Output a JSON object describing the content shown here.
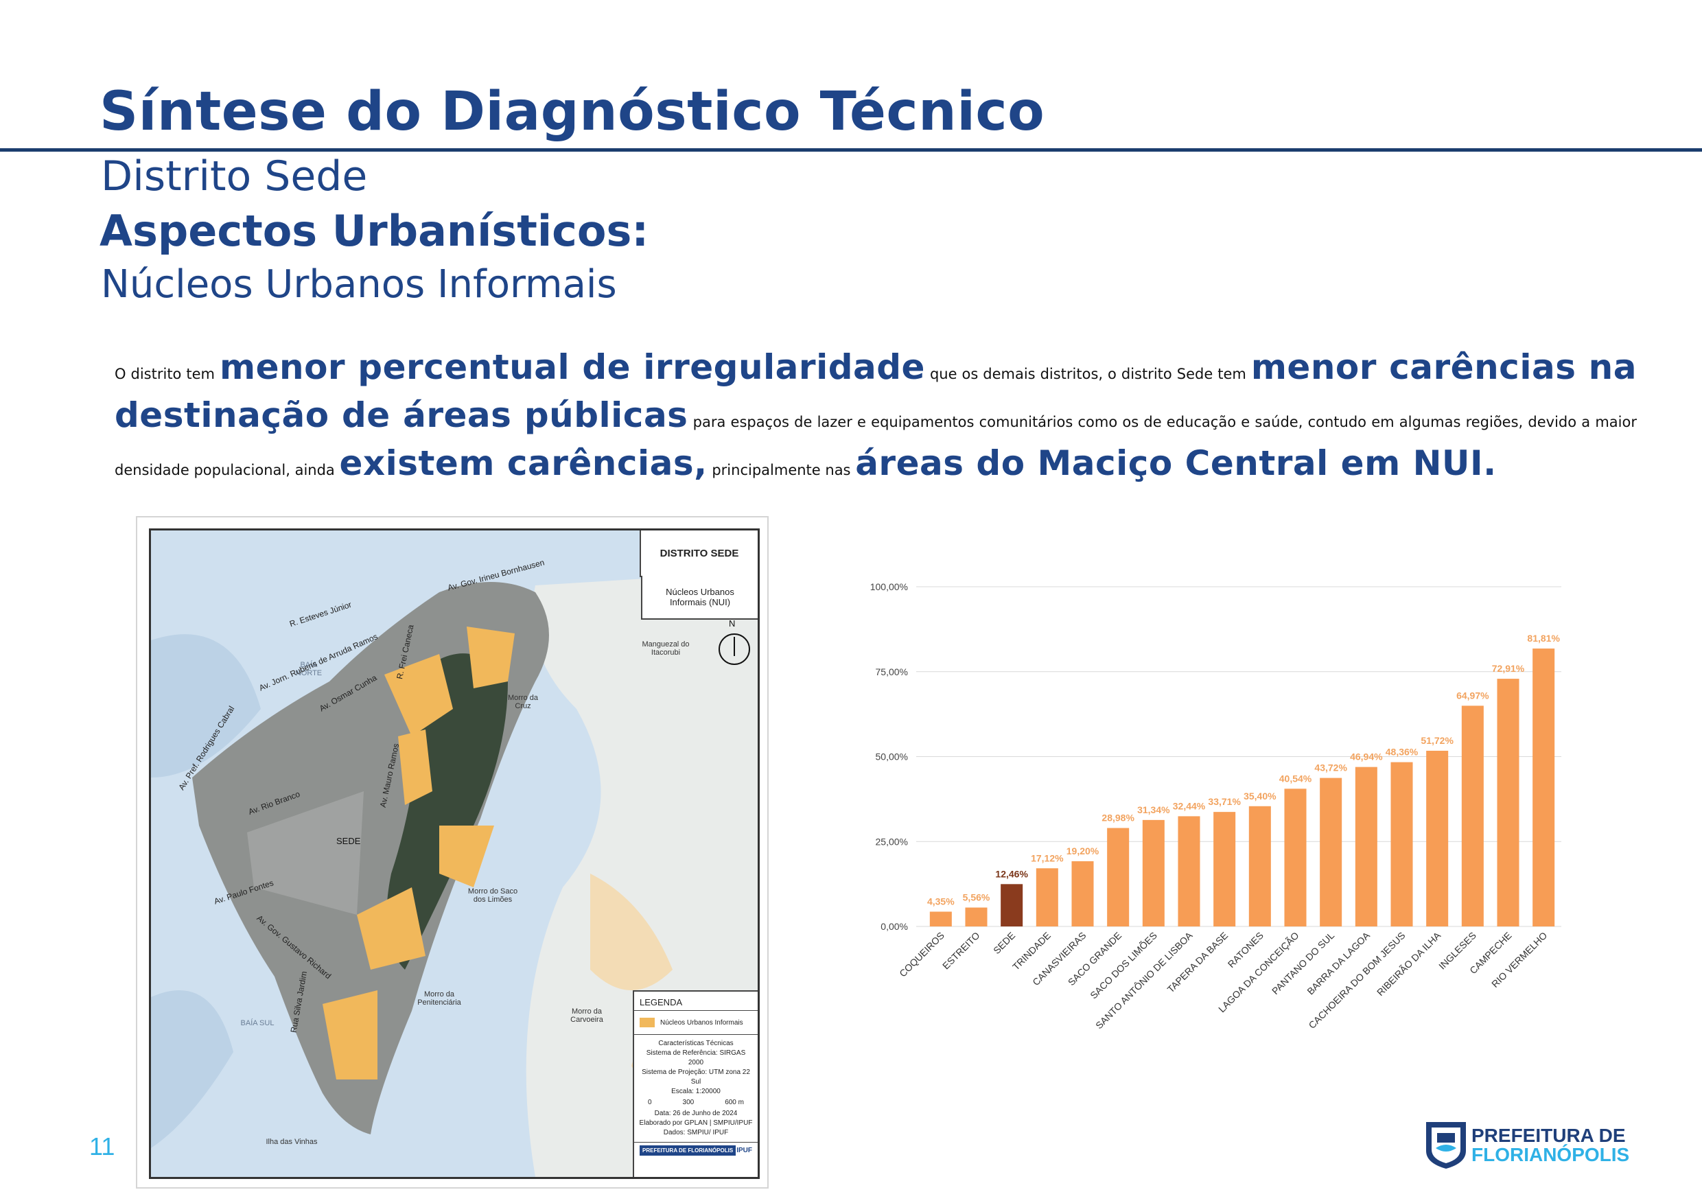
{
  "header": {
    "title": "Síntese do Diagnóstico Técnico",
    "district": "Distrito Sede",
    "section": "Aspectos Urbanísticos:",
    "subsection": "Núcleos Urbanos Informais"
  },
  "paragraph": {
    "p1": "O distrito tem ",
    "b1": "menor percentual de irregularidade",
    "p2": " que os demais distritos, o distrito Sede tem ",
    "b2": "menor carências na destinação de áreas públicas",
    "p3": " para espaços de lazer e equipamentos comunitários como os de educação e saúde, contudo em algumas regiões, devido a maior densidade populacional, ainda ",
    "b3": "existem carências,",
    "p4": " principalmente nas ",
    "b4": "áreas do Maciço Central em NUI."
  },
  "map": {
    "title": "DISTRITO SEDE",
    "subtitle": "Núcleos Urbanos Informais (NUI)",
    "north": "N",
    "labels": {
      "baia_norte": "BAÍA NORTE",
      "baia_sul": "BAÍA SUL",
      "sede": "SEDE",
      "manguezal": "Manguezal do Itacorubi",
      "ilha_vinhas": "Ilha das Vinhas",
      "morro_carvoeira": "Morro da Carvoeira",
      "morro_cruz": "Morro da Cruz",
      "morro_limoes": "Morro do Saco dos Limões",
      "morro_caixa": "Morro da Penitenciária"
    },
    "streets": {
      "beira_mar": "Av. Gov. Irineu Bornhausen",
      "rubens": "Av. Jorn. Rubens de Arruda Ramos",
      "rio_branco": "Av. Rio Branco",
      "paulo_fontes": "Av. Paulo Fontes",
      "gustavo": "Av. Gov. Gustavo Richard",
      "osmar": "Av. Osmar Cunha",
      "mauro": "Av. Mauro Ramos",
      "prof_othon": "R. Frei Caneca",
      "rodrigues": "Av. Pref. Rodrigues Cabral",
      "ruaesteves": "R. Esteves Júnior",
      "ruasilva": "Rua Silva Jardim"
    },
    "legend": {
      "heading": "LEGENDA",
      "item": "Núcleos Urbanos Informais",
      "tech_title": "Características Técnicas",
      "ref": "Sistema de Referência: SIRGAS 2000",
      "proj": "Sistema de Projeção: UTM zona 22 Sul",
      "scale": "Escala: 1:20000",
      "s0": "0",
      "s1": "300",
      "s2": "600 m",
      "date": "Data: 26 de Junho de 2024",
      "by": "Elaborado por GPLAN | SMPIU/IPUF",
      "data": "Dados: SMPIU/ IPUF",
      "logo1": "PREFEITURA DE FLORIANÓPOLIS",
      "logo2": "IPUF"
    },
    "colors": {
      "nui": "#f1b85b",
      "water": "#cfe0ef",
      "urban": "#8e918f",
      "forest": "#3a4a3a"
    }
  },
  "chart_data": {
    "type": "bar",
    "title": "",
    "xlabel": "",
    "ylabel": "",
    "ylim": [
      0,
      100
    ],
    "yticks": [
      "0,00%",
      "25,00%",
      "50,00%",
      "75,00%",
      "100,00%"
    ],
    "categories": [
      "COQUEIROS",
      "ESTREITO",
      "SEDE",
      "TRINDADE",
      "CANASVIEIRAS",
      "SACO GRANDE",
      "SACO DOS LIMÕES",
      "SANTO ANTÔNIO DE LISBOA",
      "TAPERA DA BASE",
      "RATONES",
      "LAGOA DA CONCEIÇÃO",
      "PANTANO DO SUL",
      "BARRA DA LAGOA",
      "CACHOEIRA DO BOM JESUS",
      "RIBEIRÃO DA ILHA",
      "INGLESES",
      "CAMPECHE",
      "RIO VERMELHO"
    ],
    "values": [
      4.35,
      5.56,
      12.46,
      17.12,
      19.2,
      28.98,
      31.34,
      32.44,
      33.71,
      35.4,
      40.54,
      43.72,
      46.94,
      48.36,
      51.72,
      64.97,
      72.91,
      81.81
    ],
    "labels": [
      "4,35%",
      "5,56%",
      "12,46%",
      "17,12%",
      "19,20%",
      "28,98%",
      "31,34%",
      "32,44%",
      "33,71%",
      "35,40%",
      "40,54%",
      "43,72%",
      "46,94%",
      "48,36%",
      "51,72%",
      "64,97%",
      "72,91%",
      "81,81%"
    ],
    "highlight": "SEDE",
    "colors": {
      "bar": "#f79d55",
      "highlight": "#8a3b1e",
      "label": "#f2a35f",
      "highlight_label": "#7a3518",
      "grid": "#d9d9d9"
    }
  },
  "footer": {
    "page": "11",
    "logo_line1": "PREFEITURA DE",
    "logo_line2": "FLORIANÓPOLIS"
  }
}
